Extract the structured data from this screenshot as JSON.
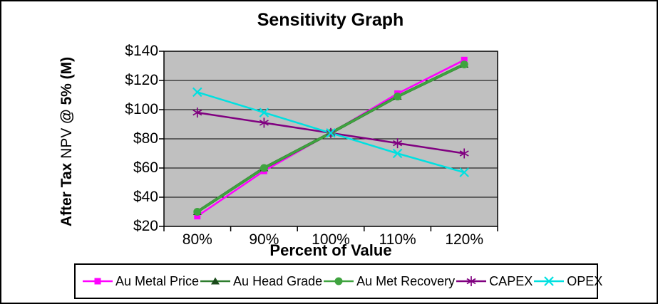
{
  "chart_data": {
    "type": "line",
    "title": "Sensitivity Graph",
    "xlabel": "Percent of Value",
    "ylabel": "After Tax NPV @ 5% (M)",
    "ylabel_parts": [
      {
        "text": "After Tax ",
        "bold": true
      },
      {
        "text": "NPV ",
        "bold": false
      },
      {
        "text": "@ 5% (M)",
        "bold": true
      }
    ],
    "categories": [
      "80%",
      "90%",
      "100%",
      "110%",
      "120%"
    ],
    "y_tick_labels": [
      "$140",
      "$120",
      "$100",
      "$80",
      "$60",
      "$40",
      "$20"
    ],
    "ylim": [
      20,
      140
    ],
    "y_step": 20,
    "grid": true,
    "plot_bg_color": "#C0C0C0",
    "gridline_color": "#000000",
    "legend_position": "bottom",
    "series": [
      {
        "name": "Au Metal Price",
        "marker": "square",
        "color": "#FF00FF",
        "marker_color": "#FF00FF",
        "values": [
          27,
          58,
          84,
          111,
          134
        ]
      },
      {
        "name": "Au Head Grade",
        "marker": "triangle",
        "color": "#2E7D2E",
        "marker_color": "#1A4A1A",
        "values": [
          30,
          60,
          84,
          109,
          131
        ]
      },
      {
        "name": "Au Met Recovery",
        "marker": "circle",
        "color": "#3FA33F",
        "marker_color": "#3FA33F",
        "values": [
          30,
          60,
          84,
          109,
          131
        ]
      },
      {
        "name": "CAPEX",
        "marker": "asterisk",
        "color": "#800080",
        "marker_color": "#800080",
        "values": [
          98,
          91,
          84,
          77,
          70
        ]
      },
      {
        "name": "OPEX",
        "marker": "x",
        "color": "#00E0E0",
        "marker_color": "#00E0E0",
        "values": [
          112,
          98,
          84,
          70,
          57
        ]
      }
    ]
  }
}
